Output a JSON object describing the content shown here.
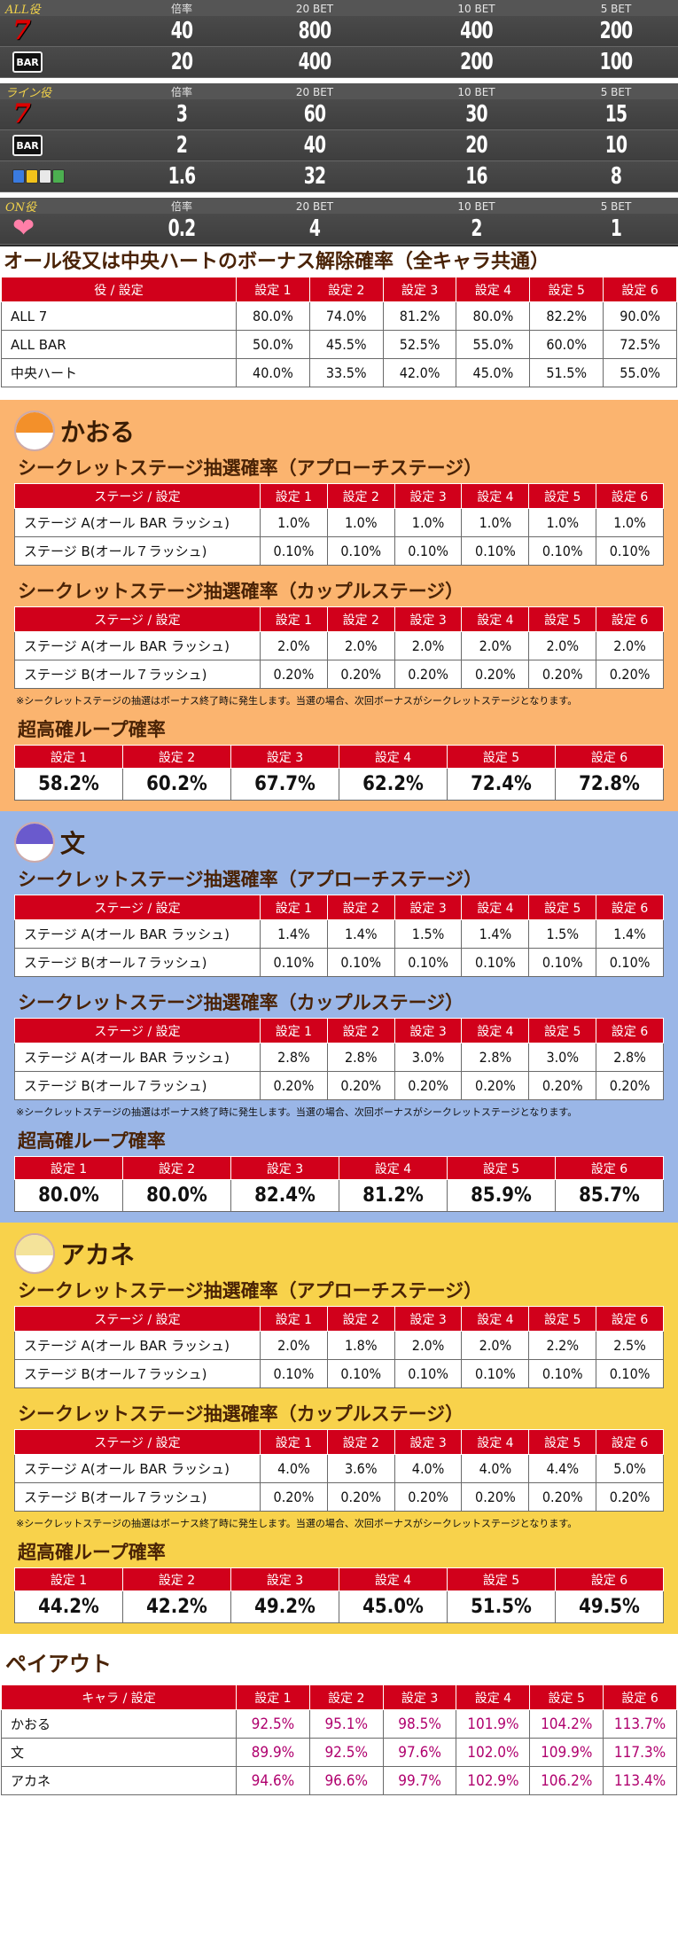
{
  "odds": {
    "groups": [
      {
        "label": "ALL役",
        "headers": [
          "倍率",
          "20 BET",
          "10 BET",
          "5 BET"
        ],
        "rows": [
          {
            "icon": "seven-icon",
            "values": [
              "40",
              "800",
              "400",
              "200"
            ]
          },
          {
            "icon": "bar-icon",
            "values": [
              "20",
              "400",
              "200",
              "100"
            ]
          }
        ]
      },
      {
        "label": "ライン役",
        "headers": [
          "倍率",
          "20 BET",
          "10 BET",
          "5 BET"
        ],
        "rows": [
          {
            "icon": "seven-icon",
            "values": [
              "3",
              "60",
              "30",
              "15"
            ]
          },
          {
            "icon": "bar-icon",
            "values": [
              "2",
              "40",
              "20",
              "10"
            ]
          },
          {
            "icon": "mixed-items-icon",
            "values": [
              "1.6",
              "32",
              "16",
              "8"
            ]
          }
        ]
      },
      {
        "label": "ON役",
        "headers": [
          "倍率",
          "20 BET",
          "10 BET",
          "5 BET"
        ],
        "rows": [
          {
            "icon": "heart-icon",
            "values": [
              "0.2",
              "4",
              "2",
              "1"
            ]
          }
        ]
      }
    ],
    "bar_text": "BAR",
    "seven_text": "7"
  },
  "bonus_release": {
    "title": "オール役又は中央ハートのボーナス解除確率（全キャラ共通）",
    "headers": [
      "役 / 設定",
      "設定 1",
      "設定 2",
      "設定 3",
      "設定 4",
      "設定 5",
      "設定 6"
    ],
    "rows": [
      [
        "ALL 7",
        "80.0%",
        "74.0%",
        "81.2%",
        "80.0%",
        "82.2%",
        "90.0%"
      ],
      [
        "ALL BAR",
        "50.0%",
        "45.5%",
        "52.5%",
        "55.0%",
        "60.0%",
        "72.5%"
      ],
      [
        "中央ハート",
        "40.0%",
        "33.5%",
        "42.0%",
        "45.0%",
        "51.5%",
        "55.0%"
      ]
    ]
  },
  "characters": [
    {
      "name": "かおる",
      "approach_title": "シークレットステージ抽選確率（アプローチステージ）",
      "couple_title": "シークレットステージ抽選確率（カップルステージ）",
      "headers": [
        "ステージ / 設定",
        "設定 1",
        "設定 2",
        "設定 3",
        "設定 4",
        "設定 5",
        "設定 6"
      ],
      "approach": [
        [
          "ステージ A(オール BAR ラッシュ)",
          "1.0%",
          "1.0%",
          "1.0%",
          "1.0%",
          "1.0%",
          "1.0%"
        ],
        [
          "ステージ B(オール７ラッシュ)",
          "0.10%",
          "0.10%",
          "0.10%",
          "0.10%",
          "0.10%",
          "0.10%"
        ]
      ],
      "couple": [
        [
          "ステージ A(オール BAR ラッシュ)",
          "2.0%",
          "2.0%",
          "2.0%",
          "2.0%",
          "2.0%",
          "2.0%"
        ],
        [
          "ステージ B(オール７ラッシュ)",
          "0.20%",
          "0.20%",
          "0.20%",
          "0.20%",
          "0.20%",
          "0.20%"
        ]
      ],
      "note": "※シークレットステージの抽選はボーナス終了時に発生します。当選の場合、次回ボーナスがシークレットステージとなります。",
      "loop_title": "超高確ループ確率",
      "loop_headers": [
        "設定 1",
        "設定 2",
        "設定 3",
        "設定 4",
        "設定 5",
        "設定 6"
      ],
      "loop_values": [
        "58.2%",
        "60.2%",
        "67.7%",
        "62.2%",
        "72.4%",
        "72.8%"
      ]
    },
    {
      "name": "文",
      "approach_title": "シークレットステージ抽選確率（アプローチステージ）",
      "couple_title": "シークレットステージ抽選確率（カップルステージ）",
      "headers": [
        "ステージ / 設定",
        "設定 1",
        "設定 2",
        "設定 3",
        "設定 4",
        "設定 5",
        "設定 6"
      ],
      "approach": [
        [
          "ステージ A(オール BAR ラッシュ)",
          "1.4%",
          "1.4%",
          "1.5%",
          "1.4%",
          "1.5%",
          "1.4%"
        ],
        [
          "ステージ B(オール７ラッシュ)",
          "0.10%",
          "0.10%",
          "0.10%",
          "0.10%",
          "0.10%",
          "0.10%"
        ]
      ],
      "couple": [
        [
          "ステージ A(オール BAR ラッシュ)",
          "2.8%",
          "2.8%",
          "3.0%",
          "2.8%",
          "3.0%",
          "2.8%"
        ],
        [
          "ステージ B(オール７ラッシュ)",
          "0.20%",
          "0.20%",
          "0.20%",
          "0.20%",
          "0.20%",
          "0.20%"
        ]
      ],
      "note": "※シークレットステージの抽選はボーナス終了時に発生します。当選の場合、次回ボーナスがシークレットステージとなります。",
      "loop_title": "超高確ループ確率",
      "loop_headers": [
        "設定 1",
        "設定 2",
        "設定 3",
        "設定 4",
        "設定 5",
        "設定 6"
      ],
      "loop_values": [
        "80.0%",
        "80.0%",
        "82.4%",
        "81.2%",
        "85.9%",
        "85.7%"
      ]
    },
    {
      "name": "アカネ",
      "approach_title": "シークレットステージ抽選確率（アプローチステージ）",
      "couple_title": "シークレットステージ抽選確率（カップルステージ）",
      "headers": [
        "ステージ / 設定",
        "設定 1",
        "設定 2",
        "設定 3",
        "設定 4",
        "設定 5",
        "設定 6"
      ],
      "approach": [
        [
          "ステージ A(オール BAR ラッシュ)",
          "2.0%",
          "1.8%",
          "2.0%",
          "2.0%",
          "2.2%",
          "2.5%"
        ],
        [
          "ステージ B(オール７ラッシュ)",
          "0.10%",
          "0.10%",
          "0.10%",
          "0.10%",
          "0.10%",
          "0.10%"
        ]
      ],
      "couple": [
        [
          "ステージ A(オール BAR ラッシュ)",
          "4.0%",
          "3.6%",
          "4.0%",
          "4.0%",
          "4.4%",
          "5.0%"
        ],
        [
          "ステージ B(オール７ラッシュ)",
          "0.20%",
          "0.20%",
          "0.20%",
          "0.20%",
          "0.20%",
          "0.20%"
        ]
      ],
      "note": "※シークレットステージの抽選はボーナス終了時に発生します。当選の場合、次回ボーナスがシークレットステージとなります。",
      "loop_title": "超高確ループ確率",
      "loop_headers": [
        "設定 1",
        "設定 2",
        "設定 3",
        "設定 4",
        "設定 5",
        "設定 6"
      ],
      "loop_values": [
        "44.2%",
        "42.2%",
        "49.2%",
        "45.0%",
        "51.5%",
        "49.5%"
      ]
    }
  ],
  "payout": {
    "title": "ペイアウト",
    "headers": [
      "キャラ / 設定",
      "設定 1",
      "設定 2",
      "設定 3",
      "設定 4",
      "設定 5",
      "設定 6"
    ],
    "rows": [
      [
        "かおる",
        "92.5%",
        "95.1%",
        "98.5%",
        "101.9%",
        "104.2%",
        "113.7%"
      ],
      [
        "文",
        "89.9%",
        "92.5%",
        "97.6%",
        "102.0%",
        "109.9%",
        "117.3%"
      ],
      [
        "アカネ",
        "94.6%",
        "96.6%",
        "99.7%",
        "102.9%",
        "106.2%",
        "113.4%"
      ]
    ]
  },
  "colors": {
    "header_red": "#d1001b",
    "kaoru_bg": "#fbb46f",
    "fumi_bg": "#9ab6e7",
    "akane_bg": "#f8d24b",
    "title_brown": "#4a2306",
    "payout_value": "#b0006e"
  }
}
